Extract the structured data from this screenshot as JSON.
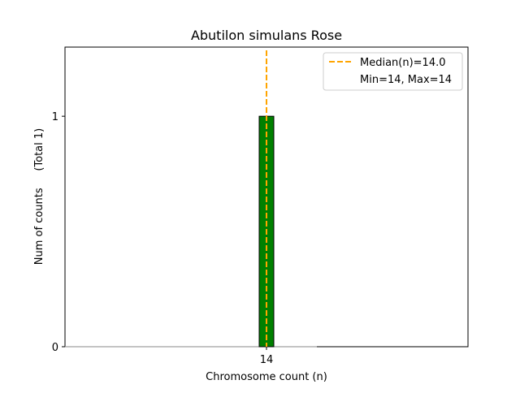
{
  "chart_data": {
    "type": "bar",
    "title": "Abutilon simulans Rose",
    "xlabel": "Chromosome count (n)",
    "ylabel": "Num of counts     (Total 1)",
    "categories": [
      "14"
    ],
    "values": [
      1
    ],
    "yticks": [
      "0",
      "1"
    ],
    "ylim": [
      0,
      1.3
    ],
    "median": 14.0,
    "bar_color": "#008000",
    "median_color": "#FFA500",
    "legend": {
      "placement": "top-right",
      "entries": [
        "Median(n)=14.0",
        "Min=14, Max=14"
      ]
    },
    "grid": false
  }
}
